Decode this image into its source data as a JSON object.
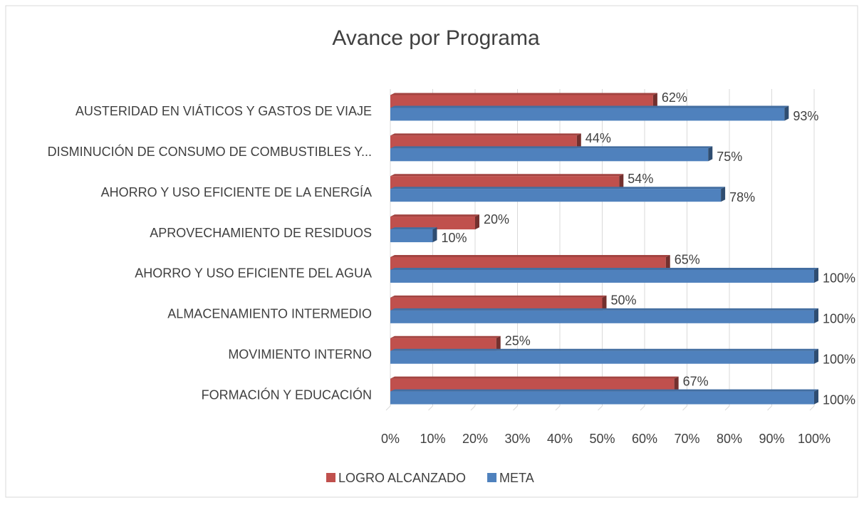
{
  "chart_data": {
    "type": "bar",
    "orientation": "horizontal",
    "title": "Avance por Programa",
    "categories": [
      "AUSTERIDAD EN VIÁTICOS Y GASTOS DE VIAJE",
      "DISMINUCIÓN DE CONSUMO DE COMBUSTIBLES Y...",
      "AHORRO Y USO EFICIENTE DE LA ENERGÍA",
      "APROVECHAMIENTO DE RESIDUOS",
      "AHORRO Y USO EFICIENTE DEL AGUA",
      "ALMACENAMIENTO INTERMEDIO",
      "MOVIMIENTO INTERNO",
      "FORMACIÓN Y EDUCACIÓN"
    ],
    "series": [
      {
        "name": "LOGRO ALCANZADO",
        "color": "#c0504d",
        "values": [
          62,
          44,
          54,
          20,
          65,
          50,
          25,
          67
        ],
        "value_labels": [
          "62%",
          "44%",
          "54%",
          "20%",
          "65%",
          "50%",
          "25%",
          "67%"
        ]
      },
      {
        "name": "META",
        "color": "#4f81bd",
        "values": [
          93,
          75,
          78,
          10,
          100,
          100,
          100,
          100
        ],
        "value_labels": [
          "93%",
          "75%",
          "78%",
          "10%",
          "100%",
          "100%",
          "100%",
          "100%"
        ]
      }
    ],
    "xlim": [
      0,
      100
    ],
    "xticks": [
      {
        "value": 0,
        "label": "0%"
      },
      {
        "value": 10,
        "label": "10%"
      },
      {
        "value": 20,
        "label": "20%"
      },
      {
        "value": 30,
        "label": "30%"
      },
      {
        "value": 40,
        "label": "40%"
      },
      {
        "value": 50,
        "label": "50%"
      },
      {
        "value": 60,
        "label": "60%"
      },
      {
        "value": 70,
        "label": "70%"
      },
      {
        "value": 80,
        "label": "80%"
      },
      {
        "value": 90,
        "label": "90%"
      },
      {
        "value": 100,
        "label": "100%"
      }
    ],
    "grid": true,
    "legend": "bottom"
  }
}
